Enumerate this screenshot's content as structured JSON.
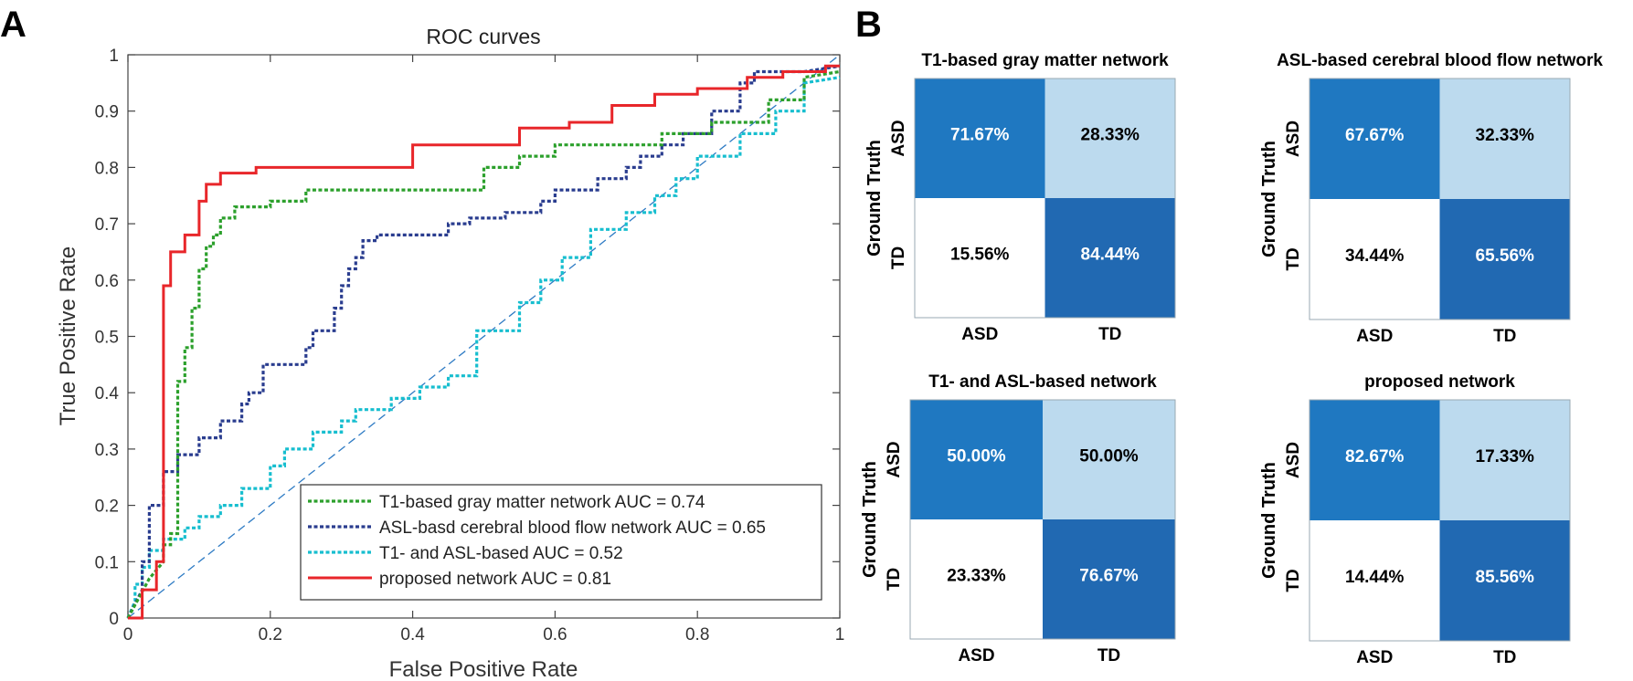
{
  "panels": {
    "a_label": "A",
    "b_label": "B"
  },
  "chart_data": [
    {
      "type": "line",
      "title": "ROC curves",
      "xlabel": "False Positive Rate",
      "ylabel": "True Positive Rate",
      "xlim": [
        0,
        1
      ],
      "ylim": [
        0,
        1
      ],
      "xticks": [
        0,
        0.2,
        0.4,
        0.6,
        0.8,
        1
      ],
      "xtick_labels": [
        "0",
        "0.2",
        "0.4",
        "0.6",
        "0.8",
        "1"
      ],
      "yticks": [
        0,
        0.1,
        0.2,
        0.3,
        0.4,
        0.5,
        0.6,
        0.7,
        0.8,
        0.9,
        1
      ],
      "ytick_labels": [
        "0",
        "0.1",
        "0.2",
        "0.3",
        "0.4",
        "0.5",
        "0.6",
        "0.7",
        "0.8",
        "0.9",
        "1"
      ],
      "legend_position": "bottom-right",
      "series": [
        {
          "name": "T1-based gray matter network AUC = 0.74",
          "color": "#2ca02c",
          "style": "dotted",
          "x": [
            0,
            0.03,
            0.05,
            0.05,
            0.06,
            0.06,
            0.07,
            0.07,
            0.08,
            0.08,
            0.09,
            0.09,
            0.1,
            0.1,
            0.11,
            0.11,
            0.12,
            0.12,
            0.13,
            0.13,
            0.15,
            0.15,
            0.2,
            0.2,
            0.25,
            0.25,
            0.5,
            0.5,
            0.55,
            0.55,
            0.6,
            0.6,
            0.75,
            0.75,
            0.82,
            0.82,
            0.9,
            0.9,
            0.95,
            0.95,
            1
          ],
          "y": [
            0,
            0.07,
            0.1,
            0.13,
            0.13,
            0.15,
            0.15,
            0.42,
            0.42,
            0.48,
            0.48,
            0.55,
            0.55,
            0.62,
            0.62,
            0.66,
            0.66,
            0.68,
            0.68,
            0.71,
            0.71,
            0.73,
            0.73,
            0.74,
            0.74,
            0.76,
            0.76,
            0.8,
            0.8,
            0.82,
            0.82,
            0.84,
            0.84,
            0.86,
            0.86,
            0.88,
            0.88,
            0.92,
            0.92,
            0.96,
            0.97
          ]
        },
        {
          "name": "ASL-basd cerebral blood flow network AUC = 0.65",
          "color": "#2a3d8f",
          "style": "dotted",
          "x": [
            0,
            0.02,
            0.02,
            0.03,
            0.03,
            0.05,
            0.05,
            0.07,
            0.07,
            0.1,
            0.1,
            0.13,
            0.13,
            0.16,
            0.16,
            0.17,
            0.17,
            0.19,
            0.19,
            0.25,
            0.25,
            0.26,
            0.26,
            0.29,
            0.29,
            0.3,
            0.3,
            0.31,
            0.31,
            0.32,
            0.32,
            0.33,
            0.33,
            0.35,
            0.35,
            0.45,
            0.45,
            0.48,
            0.48,
            0.53,
            0.53,
            0.58,
            0.58,
            0.6,
            0.6,
            0.66,
            0.66,
            0.7,
            0.7,
            0.72,
            0.72,
            0.75,
            0.75,
            0.78,
            0.78,
            0.82,
            0.82,
            0.86,
            0.86,
            0.88,
            0.88,
            0.95,
            1
          ],
          "y": [
            0,
            0.05,
            0.1,
            0.1,
            0.2,
            0.2,
            0.26,
            0.26,
            0.29,
            0.29,
            0.32,
            0.32,
            0.35,
            0.35,
            0.38,
            0.38,
            0.4,
            0.4,
            0.45,
            0.45,
            0.48,
            0.48,
            0.51,
            0.51,
            0.55,
            0.55,
            0.59,
            0.59,
            0.62,
            0.62,
            0.64,
            0.64,
            0.67,
            0.67,
            0.68,
            0.68,
            0.7,
            0.7,
            0.71,
            0.71,
            0.72,
            0.72,
            0.74,
            0.74,
            0.76,
            0.76,
            0.78,
            0.78,
            0.8,
            0.8,
            0.82,
            0.82,
            0.84,
            0.84,
            0.86,
            0.86,
            0.9,
            0.9,
            0.95,
            0.95,
            0.97,
            0.97,
            0.98
          ]
        },
        {
          "name": "T1- and ASL-based  AUC = 0.52",
          "color": "#17becf",
          "style": "dotted",
          "x": [
            0,
            0.01,
            0.01,
            0.02,
            0.02,
            0.03,
            0.03,
            0.05,
            0.05,
            0.08,
            0.08,
            0.1,
            0.1,
            0.13,
            0.13,
            0.16,
            0.16,
            0.2,
            0.2,
            0.22,
            0.22,
            0.26,
            0.26,
            0.3,
            0.3,
            0.32,
            0.32,
            0.37,
            0.37,
            0.41,
            0.41,
            0.45,
            0.45,
            0.49,
            0.49,
            0.55,
            0.55,
            0.58,
            0.58,
            0.61,
            0.61,
            0.65,
            0.65,
            0.7,
            0.7,
            0.74,
            0.74,
            0.77,
            0.77,
            0.8,
            0.8,
            0.86,
            0.86,
            0.91,
            0.91,
            0.95,
            0.95,
            1
          ],
          "y": [
            0,
            0.03,
            0.06,
            0.06,
            0.09,
            0.09,
            0.12,
            0.12,
            0.14,
            0.14,
            0.16,
            0.16,
            0.18,
            0.18,
            0.2,
            0.2,
            0.23,
            0.23,
            0.27,
            0.27,
            0.3,
            0.3,
            0.33,
            0.33,
            0.35,
            0.35,
            0.37,
            0.37,
            0.39,
            0.39,
            0.41,
            0.41,
            0.43,
            0.43,
            0.51,
            0.51,
            0.56,
            0.56,
            0.6,
            0.6,
            0.64,
            0.64,
            0.69,
            0.69,
            0.72,
            0.72,
            0.75,
            0.75,
            0.78,
            0.78,
            0.82,
            0.82,
            0.86,
            0.86,
            0.9,
            0.9,
            0.95,
            0.96
          ]
        },
        {
          "name": "proposed network AUC = 0.81",
          "color": "#e8262a",
          "style": "solid",
          "x": [
            0,
            0.02,
            0.02,
            0.04,
            0.04,
            0.05,
            0.05,
            0.06,
            0.06,
            0.07,
            0.07,
            0.08,
            0.08,
            0.1,
            0.1,
            0.11,
            0.11,
            0.13,
            0.13,
            0.18,
            0.18,
            0.4,
            0.4,
            0.55,
            0.55,
            0.62,
            0.62,
            0.68,
            0.68,
            0.74,
            0.74,
            0.8,
            0.8,
            0.87,
            0.87,
            0.92,
            0.92,
            0.98,
            0.98,
            1
          ],
          "y": [
            0,
            0,
            0.05,
            0.05,
            0.1,
            0.1,
            0.59,
            0.59,
            0.65,
            0.65,
            0.65,
            0.65,
            0.68,
            0.68,
            0.74,
            0.74,
            0.77,
            0.77,
            0.79,
            0.79,
            0.8,
            0.8,
            0.84,
            0.84,
            0.87,
            0.87,
            0.88,
            0.88,
            0.91,
            0.91,
            0.93,
            0.93,
            0.94,
            0.94,
            0.96,
            0.96,
            0.97,
            0.97,
            0.98,
            0.98
          ]
        },
        {
          "name": "chance",
          "color": "#2e7bc4",
          "style": "dashed",
          "in_legend": false,
          "x": [
            0,
            1
          ],
          "y": [
            0,
            1
          ]
        }
      ]
    },
    {
      "type": "heatmap",
      "title": "T1-based gray matter network",
      "ylabel": "Ground Truth",
      "rows": [
        "ASD",
        "TD"
      ],
      "cols": [
        "ASD",
        "TD"
      ],
      "values": [
        [
          "71.67%",
          "28.33%"
        ],
        [
          "15.56%",
          "84.44%"
        ]
      ]
    },
    {
      "type": "heatmap",
      "title": "ASL-based cerebral blood flow network",
      "ylabel": "Ground Truth",
      "rows": [
        "ASD",
        "TD"
      ],
      "cols": [
        "ASD",
        "TD"
      ],
      "values": [
        [
          "67.67%",
          "32.33%"
        ],
        [
          "34.44%",
          "65.56%"
        ]
      ]
    },
    {
      "type": "heatmap",
      "title": "T1- and ASL-based network",
      "ylabel": "Ground Truth",
      "rows": [
        "ASD",
        "TD"
      ],
      "cols": [
        "ASD",
        "TD"
      ],
      "values": [
        [
          "50.00%",
          "50.00%"
        ],
        [
          "23.33%",
          "76.67%"
        ]
      ]
    },
    {
      "type": "heatmap",
      "title": "proposed network",
      "ylabel": "Ground Truth",
      "rows": [
        "ASD",
        "TD"
      ],
      "cols": [
        "ASD",
        "TD"
      ],
      "values": [
        [
          "82.67%",
          "17.33%"
        ],
        [
          "14.44%",
          "85.56%"
        ]
      ]
    }
  ],
  "colors": {
    "cell_dark": "#2169b2",
    "cell_mid": "#1f78c1",
    "cell_light": "#bcdaee",
    "cell_white": "#ffffff",
    "text_on_dark": "#ffffff",
    "text_on_light": "#000000"
  }
}
